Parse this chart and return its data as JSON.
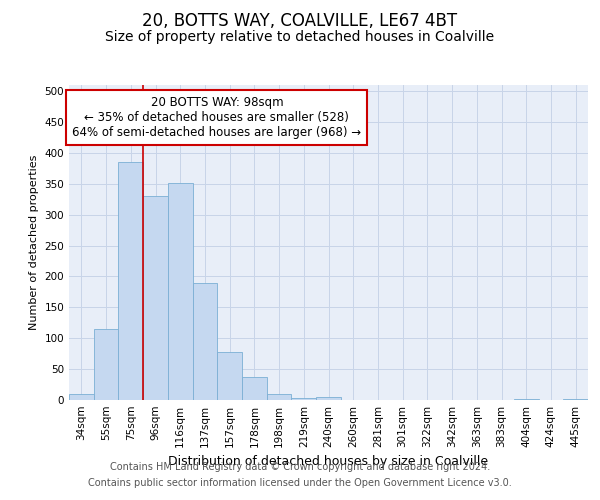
{
  "title1": "20, BOTTS WAY, COALVILLE, LE67 4BT",
  "title2": "Size of property relative to detached houses in Coalville",
  "xlabel": "Distribution of detached houses by size in Coalville",
  "ylabel": "Number of detached properties",
  "categories": [
    "34sqm",
    "55sqm",
    "75sqm",
    "96sqm",
    "116sqm",
    "137sqm",
    "157sqm",
    "178sqm",
    "198sqm",
    "219sqm",
    "240sqm",
    "260sqm",
    "281sqm",
    "301sqm",
    "322sqm",
    "342sqm",
    "363sqm",
    "383sqm",
    "404sqm",
    "424sqm",
    "445sqm"
  ],
  "bar_heights": [
    10,
    115,
    385,
    330,
    352,
    190,
    77,
    37,
    10,
    4,
    5,
    0,
    0,
    0,
    0,
    0,
    0,
    0,
    2,
    0,
    2
  ],
  "bar_color": "#c5d8f0",
  "bar_edge_color": "#7bafd4",
  "grid_color": "#c8d4e8",
  "background_color": "#e8eef8",
  "red_line_x": 2.5,
  "annotation_text_line1": "20 BOTTS WAY: 98sqm",
  "annotation_text_line2": "← 35% of detached houses are smaller (528)",
  "annotation_text_line3": "64% of semi-detached houses are larger (968) →",
  "annotation_box_facecolor": "#ffffff",
  "annotation_box_edgecolor": "#cc0000",
  "ylim": [
    0,
    510
  ],
  "yticks": [
    0,
    50,
    100,
    150,
    200,
    250,
    300,
    350,
    400,
    450,
    500
  ],
  "footer_line1": "Contains HM Land Registry data © Crown copyright and database right 2024.",
  "footer_line2": "Contains public sector information licensed under the Open Government Licence v3.0.",
  "title1_fontsize": 12,
  "title2_fontsize": 10,
  "xlabel_fontsize": 9,
  "ylabel_fontsize": 8,
  "tick_fontsize": 7.5,
  "annotation_fontsize": 8.5,
  "footer_fontsize": 7
}
